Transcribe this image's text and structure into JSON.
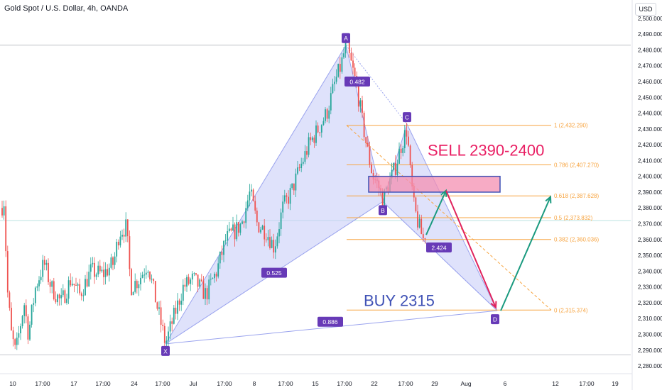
{
  "header": {
    "symbol_title": "Gold Spot / U.S. Dollar, 4h, OANDA",
    "currency": "USD"
  },
  "chart_data": {
    "type": "candlestick",
    "y_axis": {
      "ticks": [
        "2,280.000",
        "2,290.000",
        "2,300.000",
        "2,310.000",
        "2,320.000",
        "2,330.000",
        "2,340.000",
        "2,350.000",
        "2,360.000",
        "2,370.000",
        "2,380.000",
        "2,390.000",
        "2,400.000",
        "2,410.000",
        "2,420.000",
        "2,430.000",
        "2,440.000",
        "2,450.000",
        "2,460.000",
        "2,470.000",
        "2,480.000",
        "2,490.000",
        "2,500.000"
      ],
      "ylim": [
        2276,
        2508
      ]
    },
    "x_axis": {
      "ticks": [
        "10",
        "17:00",
        "17",
        "17:00",
        "24",
        "17:00",
        "Jul",
        "17:00",
        "8",
        "17:00",
        "15",
        "17:00",
        "22",
        "17:00",
        "29",
        "Aug",
        "6",
        "12",
        "17:00",
        "19"
      ]
    },
    "pattern_points": [
      {
        "label": "X",
        "price": 2294
      },
      {
        "label": "A",
        "price": 2483
      },
      {
        "label": "B",
        "price": 2384
      },
      {
        "label": "C",
        "price": 2433
      },
      {
        "label": "D",
        "price": 2315
      }
    ],
    "ratio_labels": [
      "0.482",
      "0.525",
      "2.424",
      "0.886"
    ],
    "fib_levels": [
      {
        "label": "1 (2,432.290)",
        "price": 2432.29
      },
      {
        "label": "0.786 (2,407.270)",
        "price": 2407.27
      },
      {
        "label": "0.618 (2,387.628)",
        "price": 2387.628
      },
      {
        "label": "0.5 (2,373.832)",
        "price": 2373.832
      },
      {
        "label": "0.382 (2,360.036)",
        "price": 2360.036
      },
      {
        "label": "0 (2,315.374)",
        "price": 2315.374
      }
    ],
    "annotations": {
      "sell": "SELL 2390-2400",
      "buy": "BUY 2315"
    },
    "sell_zone": [
      2390,
      2400
    ],
    "colors": {
      "up": "#26a69a",
      "down": "#ef5350",
      "pattern_fill": "#c5cbf7",
      "pattern_line": "#9aa3ee",
      "label_bg": "#673ab7",
      "fib": "#f7a440",
      "sell": "#e91e63",
      "buy": "#3f51b5",
      "arrow_up": "#1a9a7f",
      "arrow_down": "#e0245e",
      "zone_fill": "#f48fb1",
      "zone_border": "#3f51b5"
    }
  }
}
